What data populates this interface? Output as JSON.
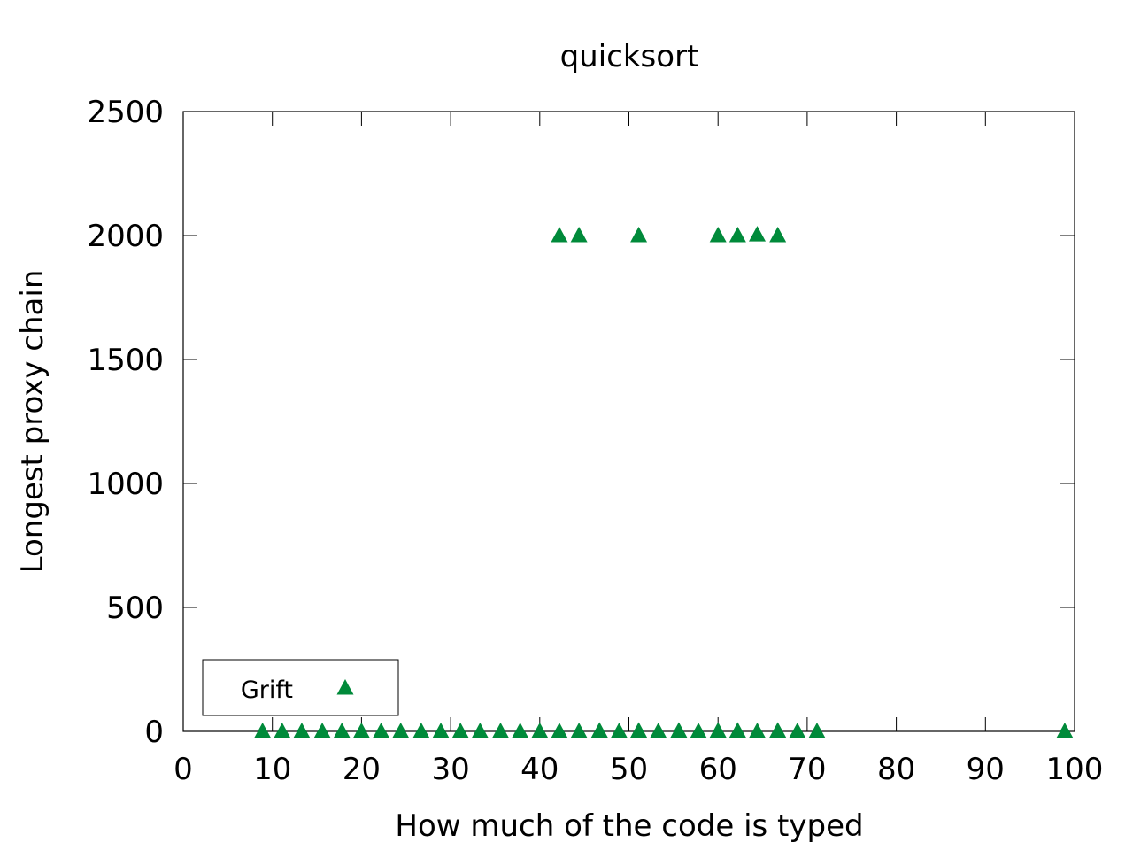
{
  "chart_data": {
    "type": "scatter",
    "title": "quicksort",
    "xlabel": "How much of the code is typed",
    "ylabel": "Longest proxy chain",
    "xlim": [
      0,
      100
    ],
    "ylim": [
      0,
      2500
    ],
    "xticks": [
      0,
      10,
      20,
      30,
      40,
      50,
      60,
      70,
      80,
      90,
      100
    ],
    "yticks": [
      0,
      500,
      1000,
      1500,
      2000,
      2500
    ],
    "grid": false,
    "legend_position": "bottom-left",
    "series": [
      {
        "name": "Grift",
        "color": "#008a3a",
        "marker": "triangle",
        "points": [
          [
            8.9,
            0
          ],
          [
            11.1,
            0
          ],
          [
            13.3,
            0
          ],
          [
            15.6,
            0
          ],
          [
            17.8,
            0
          ],
          [
            20.0,
            0
          ],
          [
            22.2,
            0
          ],
          [
            24.4,
            0
          ],
          [
            26.7,
            0
          ],
          [
            28.9,
            0
          ],
          [
            31.1,
            0
          ],
          [
            33.3,
            0
          ],
          [
            35.6,
            0
          ],
          [
            37.8,
            0
          ],
          [
            40.0,
            0
          ],
          [
            42.2,
            0
          ],
          [
            44.4,
            0
          ],
          [
            46.7,
            2
          ],
          [
            48.9,
            0
          ],
          [
            51.1,
            2
          ],
          [
            53.3,
            0
          ],
          [
            55.6,
            2
          ],
          [
            57.8,
            0
          ],
          [
            60.0,
            2
          ],
          [
            62.2,
            2
          ],
          [
            64.4,
            0
          ],
          [
            66.7,
            2
          ],
          [
            68.9,
            0
          ],
          [
            71.1,
            0
          ],
          [
            98.9,
            0
          ],
          [
            42.2,
            2000
          ],
          [
            44.4,
            2000
          ],
          [
            51.1,
            2000
          ],
          [
            60.0,
            2000
          ],
          [
            62.2,
            2000
          ],
          [
            64.4,
            2003
          ],
          [
            66.7,
            2000
          ]
        ]
      }
    ]
  }
}
